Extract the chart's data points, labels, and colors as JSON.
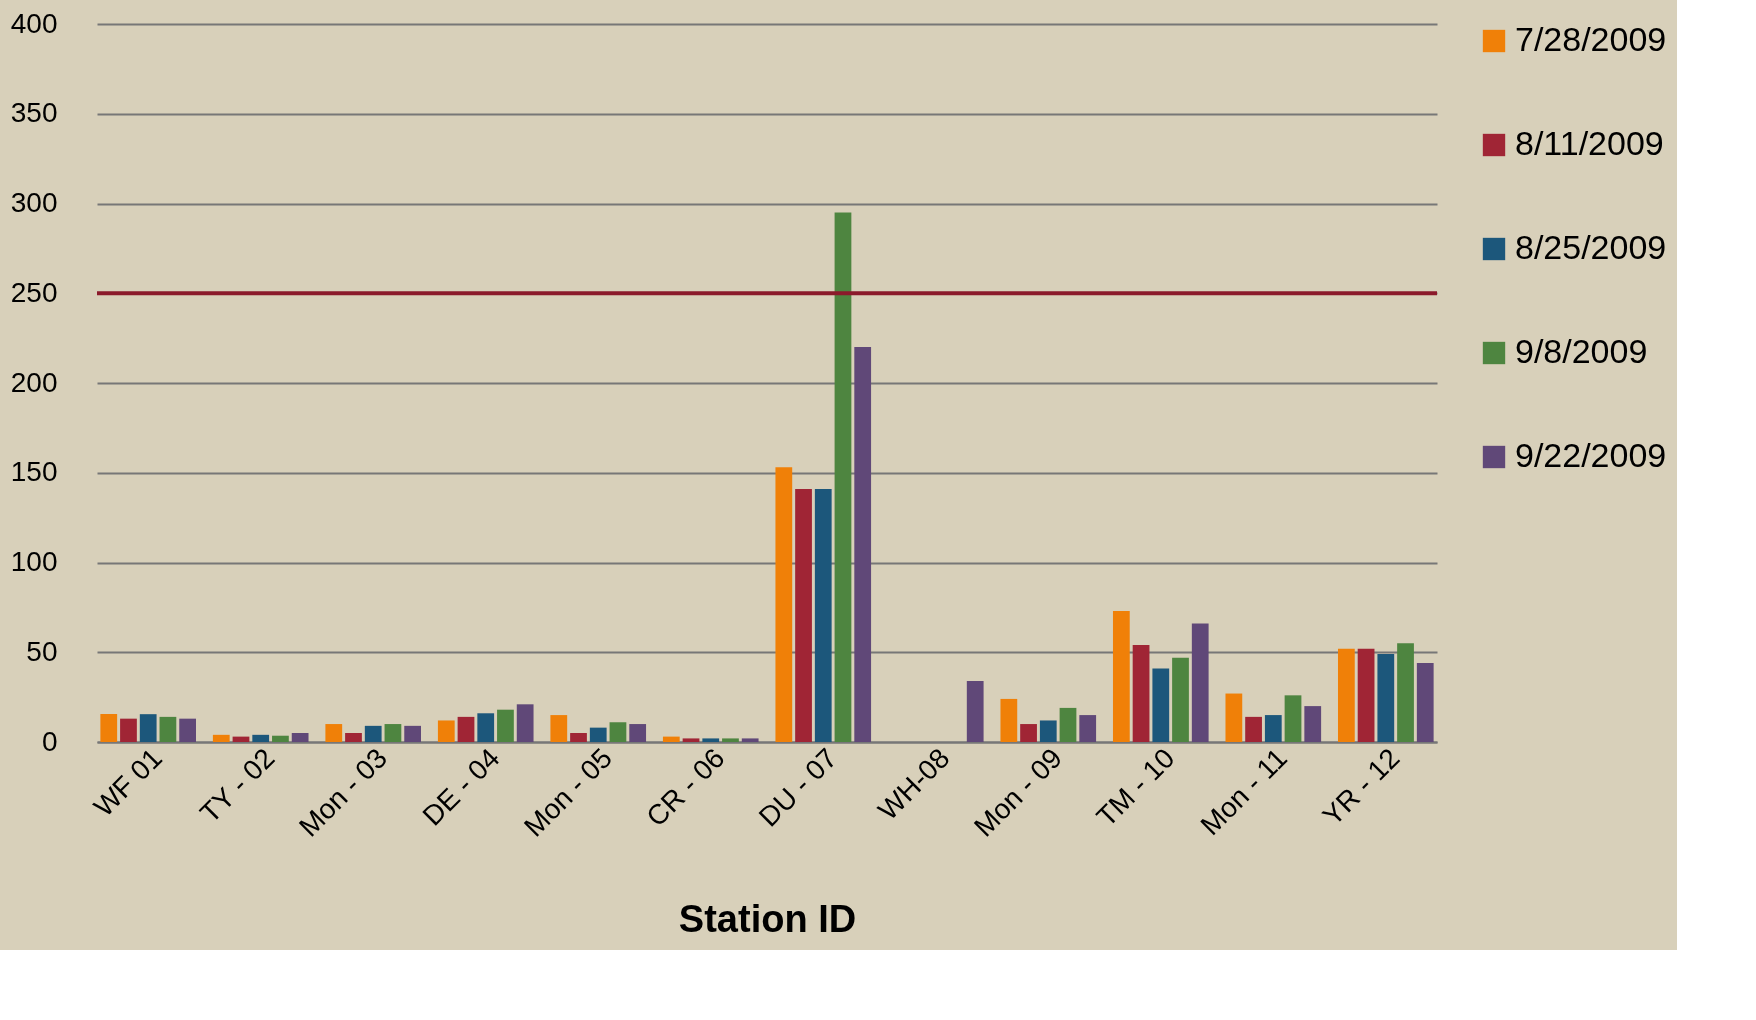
{
  "chart_data": {
    "type": "bar",
    "xlabel": "Station ID",
    "categories": [
      "WF 01",
      "TY - 02",
      "Mon - 03",
      "DE - 04",
      "Mon - 05",
      "CR - 06",
      "DU - 07",
      "WH-08",
      "Mon - 09",
      "TM - 10",
      "Mon - 11",
      "YR - 12"
    ],
    "series": [
      {
        "name": "7/28/2009",
        "color": "#f08008",
        "values": [
          15.6,
          4,
          10,
          12,
          15,
          3,
          153,
          null,
          24,
          73,
          27,
          52
        ]
      },
      {
        "name": "8/11/2009",
        "color": "#a02535",
        "values": [
          13,
          3,
          5,
          14,
          5,
          2,
          141,
          null,
          10,
          54,
          14,
          52
        ]
      },
      {
        "name": "8/25/2009",
        "color": "#1c577b",
        "values": [
          15.5,
          4,
          9,
          16,
          8,
          2,
          141,
          null,
          12,
          41,
          15,
          49
        ]
      },
      {
        "name": "9/8/2009",
        "color": "#4e8540",
        "values": [
          14,
          3.5,
          10,
          18,
          11,
          2,
          295,
          null,
          19,
          47,
          26,
          55
        ]
      },
      {
        "name": "9/22/2009",
        "color": "#604878",
        "values": [
          13,
          5,
          9,
          21,
          10,
          2,
          220,
          34,
          15,
          66,
          20,
          44
        ]
      }
    ],
    "ylim": [
      0,
      400
    ],
    "yticks": [
      0,
      50,
      100,
      150,
      200,
      250,
      300,
      350,
      400
    ],
    "ref_lines": [
      {
        "axis": "y",
        "value": 250,
        "color": "#8b1a2b"
      }
    ],
    "grid": "y",
    "legend": "right"
  }
}
